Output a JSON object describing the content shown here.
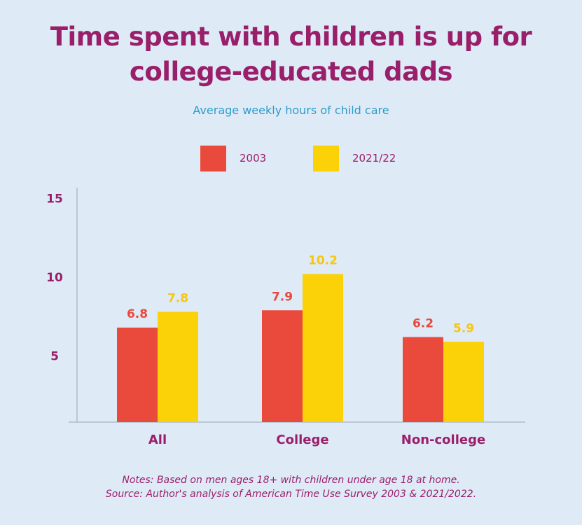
{
  "title_line1": "Time spent with children is up for",
  "title_line2": "college-educated dads",
  "subtitle": "Average weekly hours of child care",
  "legend": [
    {
      "label": "2003",
      "color": "#ea4a3b"
    },
    {
      "label": "2021/22",
      "color": "#fbd107"
    }
  ],
  "notes_line1": "Notes: Based on men ages 18+ with children under age 18 at home.",
  "notes_line2": "Source: Author's analysis of American Time Use Survey 2003 & 2021/2022.",
  "chart_data": {
    "type": "bar",
    "categories": [
      "All",
      "College",
      "Non-college"
    ],
    "series": [
      {
        "name": "2003",
        "values": [
          6.8,
          7.9,
          6.2
        ],
        "color": "#ea4a3b",
        "label_color": "#e8493b"
      },
      {
        "name": "2021/22",
        "values": [
          7.8,
          10.2,
          5.9
        ],
        "color": "#fbd107",
        "label_color": "#f5c614"
      }
    ],
    "data_labels": [
      [
        "6.8",
        "7.9",
        "6.2"
      ],
      [
        "7.8",
        "10.2",
        "5.9"
      ]
    ],
    "yticks": [
      "5",
      "10",
      "15"
    ],
    "ytick_values": [
      5,
      10,
      15
    ],
    "grid": false,
    "legend_position": "top-center",
    "axis_color": "#9aa7b3",
    "label_color": "#9a1f6b"
  }
}
